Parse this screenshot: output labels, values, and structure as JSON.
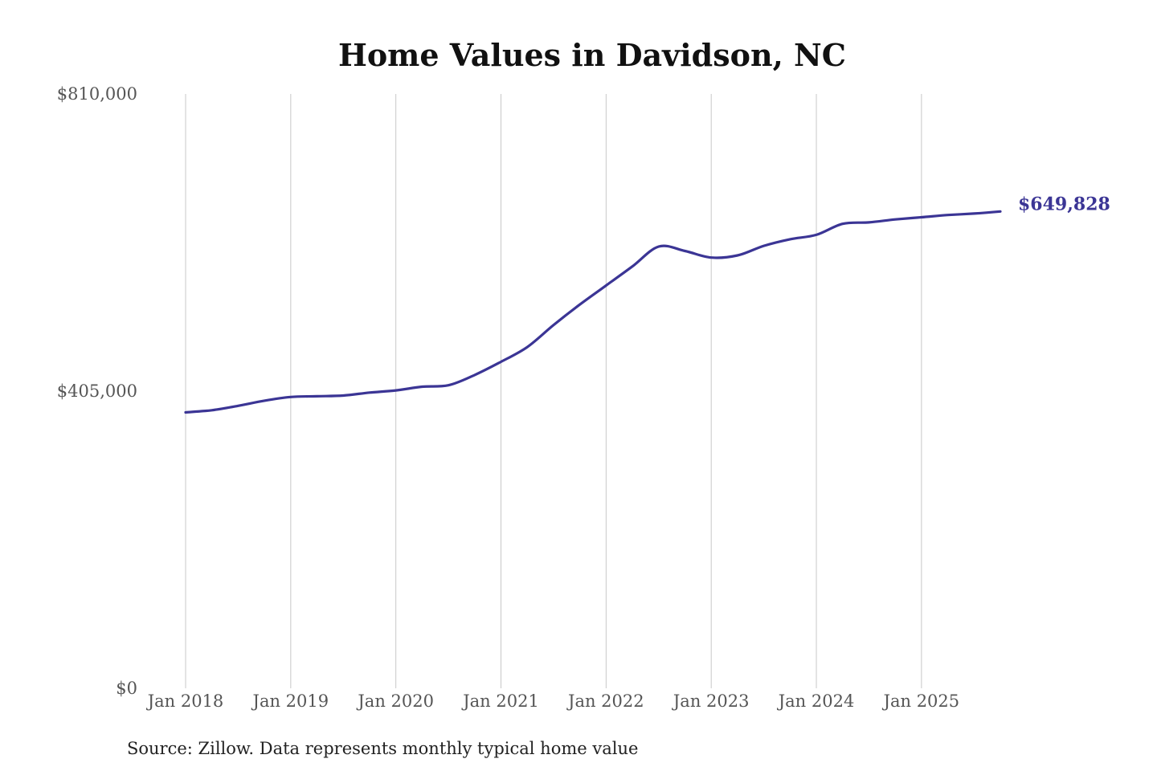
{
  "chart_data": {
    "type": "line",
    "title": "Home Values in Davidson, NC",
    "subtitle": "",
    "xlabel": "",
    "ylabel": "",
    "y_ticks": [
      "$810,000",
      "$405,000",
      "$0"
    ],
    "y_tick_values": [
      810000,
      405000,
      0
    ],
    "ylim": [
      0,
      810000
    ],
    "x_ticks": [
      "Jan 2018",
      "Jan 2019",
      "Jan 2020",
      "Jan 2021",
      "Jan 2022",
      "Jan 2023",
      "Jan 2024",
      "Jan 2025"
    ],
    "x_tick_values": [
      "2018-01",
      "2019-01",
      "2020-01",
      "2021-01",
      "2022-01",
      "2023-01",
      "2024-01",
      "2025-01"
    ],
    "xlim": [
      "2018-01",
      "2025-10"
    ],
    "grid": "vertical",
    "legend": "none",
    "series": [
      {
        "color": "#3b3595",
        "end_label": "$649,828",
        "points": [
          [
            "2018-01",
            376000
          ],
          [
            "2018-04",
            379000
          ],
          [
            "2018-07",
            385000
          ],
          [
            "2018-10",
            392000
          ],
          [
            "2019-01",
            397000
          ],
          [
            "2019-04",
            398000
          ],
          [
            "2019-07",
            399000
          ],
          [
            "2019-10",
            403000
          ],
          [
            "2020-01",
            406000
          ],
          [
            "2020-04",
            411000
          ],
          [
            "2020-07",
            413000
          ],
          [
            "2020-10",
            427000
          ],
          [
            "2021-01",
            445000
          ],
          [
            "2021-04",
            465000
          ],
          [
            "2021-07",
            495000
          ],
          [
            "2021-10",
            523000
          ],
          [
            "2022-01",
            549000
          ],
          [
            "2022-04",
            575000
          ],
          [
            "2022-07",
            602000
          ],
          [
            "2022-10",
            596000
          ],
          [
            "2023-01",
            587000
          ],
          [
            "2023-04",
            590000
          ],
          [
            "2023-07",
            603000
          ],
          [
            "2023-10",
            612000
          ],
          [
            "2024-01",
            618000
          ],
          [
            "2024-04",
            633000
          ],
          [
            "2024-07",
            635000
          ],
          [
            "2024-10",
            639000
          ],
          [
            "2025-01",
            642000
          ],
          [
            "2025-04",
            645000
          ],
          [
            "2025-07",
            647000
          ],
          [
            "2025-10",
            649828
          ]
        ]
      }
    ]
  },
  "source_note": "Source: Zillow. Data represents monthly typical home value"
}
